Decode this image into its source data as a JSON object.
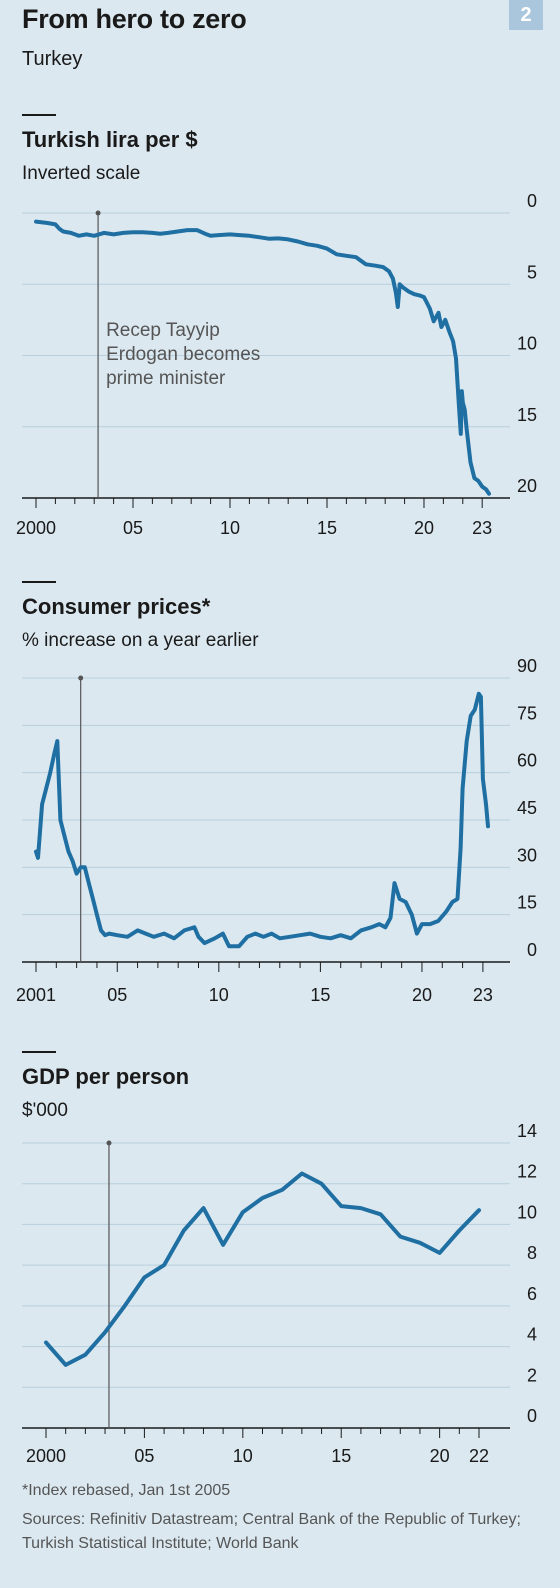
{
  "header": {
    "title": "From hero to zero",
    "subtitle": "Turkey",
    "chart_number": "2"
  },
  "colors": {
    "background": "#dbe8f0",
    "line": "#1f6fa3",
    "grid": "#b9cfdd",
    "annotation": "#555555"
  },
  "chart_data": [
    {
      "type": "line",
      "title": "Turkish lira per $",
      "subtitle": "Inverted scale",
      "y_inverted": true,
      "ylim": [
        0,
        20
      ],
      "yticks": [
        0,
        5,
        10,
        15,
        20
      ],
      "xlim": [
        2000,
        2024
      ],
      "xticks": [
        {
          "value": 2000,
          "label": "2000"
        },
        {
          "value": 2005,
          "label": "05"
        },
        {
          "value": 2010,
          "label": "10"
        },
        {
          "value": 2015,
          "label": "15"
        },
        {
          "value": 2020,
          "label": "20"
        },
        {
          "value": 2023,
          "label": "23"
        }
      ],
      "annotation": {
        "x": 2003.2,
        "text": [
          "Recep Tayyip",
          "Erdogan becomes",
          "prime minister"
        ]
      },
      "grid": true,
      "series": [
        {
          "x": [
            2000.0,
            2000.6,
            2001.0,
            2001.2,
            2001.4,
            2001.8,
            2002.2,
            2002.6,
            2003.0,
            2003.5,
            2004.0,
            2004.5,
            2005.0,
            2005.5,
            2006.0,
            2006.4,
            2006.8,
            2007.3,
            2007.8,
            2008.3,
            2008.8,
            2009.0,
            2009.4,
            2010.0,
            2010.5,
            2011.0,
            2011.5,
            2012.0,
            2012.5,
            2013.0,
            2013.5,
            2014.0,
            2014.5,
            2015.0,
            2015.5,
            2016.0,
            2016.5,
            2017.0,
            2017.5,
            2017.9,
            2018.2,
            2018.4,
            2018.55,
            2018.65,
            2018.75,
            2018.9,
            2019.2,
            2019.5,
            2019.8,
            2020.0,
            2020.3,
            2020.5,
            2020.75,
            2020.9,
            2021.1,
            2021.3,
            2021.5,
            2021.65,
            2021.8,
            2021.9,
            2021.95,
            2022.0,
            2022.1,
            2022.2,
            2022.4,
            2022.6,
            2022.8,
            2023.0,
            2023.2,
            2023.35
          ],
          "y": [
            0.6,
            0.7,
            0.8,
            1.1,
            1.3,
            1.4,
            1.6,
            1.5,
            1.6,
            1.4,
            1.5,
            1.4,
            1.35,
            1.35,
            1.4,
            1.45,
            1.4,
            1.3,
            1.2,
            1.2,
            1.5,
            1.6,
            1.55,
            1.5,
            1.55,
            1.6,
            1.7,
            1.8,
            1.78,
            1.85,
            2.0,
            2.2,
            2.3,
            2.5,
            2.9,
            3.0,
            3.1,
            3.6,
            3.7,
            3.8,
            4.1,
            4.6,
            5.6,
            6.6,
            5.0,
            5.2,
            5.5,
            5.7,
            5.8,
            5.9,
            6.7,
            7.6,
            7.0,
            8.0,
            7.5,
            8.3,
            9.0,
            10.2,
            13.5,
            15.5,
            12.5,
            13.3,
            13.8,
            15.2,
            17.5,
            18.6,
            18.8,
            19.2,
            19.4,
            19.7
          ]
        }
      ]
    },
    {
      "type": "line",
      "title": "Consumer prices*",
      "subtitle": "% increase on a year earlier",
      "ylim": [
        0,
        90
      ],
      "yticks": [
        0,
        15,
        30,
        45,
        60,
        75,
        90
      ],
      "xlim": [
        2001,
        2024
      ],
      "xticks": [
        {
          "value": 2001,
          "label": "2001"
        },
        {
          "value": 2005,
          "label": "05"
        },
        {
          "value": 2010,
          "label": "10"
        },
        {
          "value": 2015,
          "label": "15"
        },
        {
          "value": 2020,
          "label": "20"
        },
        {
          "value": 2023,
          "label": "23"
        }
      ],
      "annotation": {
        "x": 2003.2
      },
      "grid": true,
      "series": [
        {
          "x": [
            2001.0,
            2001.1,
            2001.3,
            2001.5,
            2001.7,
            2001.9,
            2002.05,
            2002.2,
            2002.4,
            2002.6,
            2002.8,
            2003.0,
            2003.2,
            2003.4,
            2003.6,
            2003.8,
            2004.0,
            2004.2,
            2004.4,
            2004.6,
            2005.0,
            2005.5,
            2006.0,
            2006.4,
            2006.8,
            2007.3,
            2007.8,
            2008.3,
            2008.8,
            2009.0,
            2009.3,
            2009.8,
            2010.2,
            2010.5,
            2011.0,
            2011.4,
            2011.8,
            2012.2,
            2012.6,
            2013.0,
            2013.5,
            2014.0,
            2014.5,
            2015.0,
            2015.5,
            2016.0,
            2016.5,
            2017.0,
            2017.5,
            2017.9,
            2018.2,
            2018.45,
            2018.65,
            2018.9,
            2019.2,
            2019.5,
            2019.75,
            2020.0,
            2020.4,
            2020.8,
            2021.2,
            2021.5,
            2021.75,
            2021.9,
            2022.0,
            2022.2,
            2022.4,
            2022.6,
            2022.8,
            2022.9,
            2023.0,
            2023.15,
            2023.25
          ],
          "y": [
            35,
            33,
            50,
            55,
            60,
            66,
            70,
            45,
            40,
            35,
            32,
            28,
            30,
            30,
            25,
            20,
            15,
            10,
            8.5,
            9,
            8.5,
            8,
            10,
            9,
            8,
            9,
            7.5,
            10,
            11,
            8,
            6,
            7.5,
            9,
            5,
            5,
            8,
            9,
            8,
            9,
            7.5,
            8,
            8.5,
            9,
            8,
            7.5,
            8.5,
            7.5,
            10,
            11,
            12,
            11,
            14,
            25,
            20,
            19,
            15,
            9,
            12,
            12,
            13,
            16,
            19,
            20,
            36,
            55,
            70,
            78,
            80,
            85,
            84,
            58,
            50,
            43
          ]
        }
      ]
    },
    {
      "type": "line",
      "title": "GDP per person",
      "subtitle": "$'000",
      "ylim": [
        0,
        14
      ],
      "yticks": [
        0,
        2,
        4,
        6,
        8,
        10,
        12,
        14
      ],
      "xlim": [
        2000,
        2024
      ],
      "xticks": [
        {
          "value": 2000,
          "label": "2000"
        },
        {
          "value": 2005,
          "label": "05"
        },
        {
          "value": 2010,
          "label": "10"
        },
        {
          "value": 2015,
          "label": "15"
        },
        {
          "value": 2020,
          "label": "20"
        },
        {
          "value": 2022,
          "label": "22"
        }
      ],
      "annotation": {
        "x": 2003.2
      },
      "grid": true,
      "series": [
        {
          "x": [
            2000,
            2001,
            2002,
            2003,
            2004,
            2005,
            2006,
            2007,
            2008,
            2009,
            2010,
            2011,
            2012,
            2013,
            2014,
            2015,
            2016,
            2017,
            2018,
            2019,
            2020,
            2021,
            2022
          ],
          "y": [
            4.2,
            3.1,
            3.6,
            4.7,
            6.0,
            7.4,
            8.0,
            9.7,
            10.8,
            9.0,
            10.6,
            11.3,
            11.7,
            12.5,
            12.0,
            10.9,
            10.8,
            10.5,
            9.4,
            9.1,
            8.6,
            9.7,
            10.7
          ]
        }
      ]
    }
  ],
  "footnote": "*Index rebased, Jan 1st 2005",
  "sources": "Sources: Refinitiv Datastream; Central Bank of the Republic of Turkey; Turkish Statistical Institute; World Bank"
}
